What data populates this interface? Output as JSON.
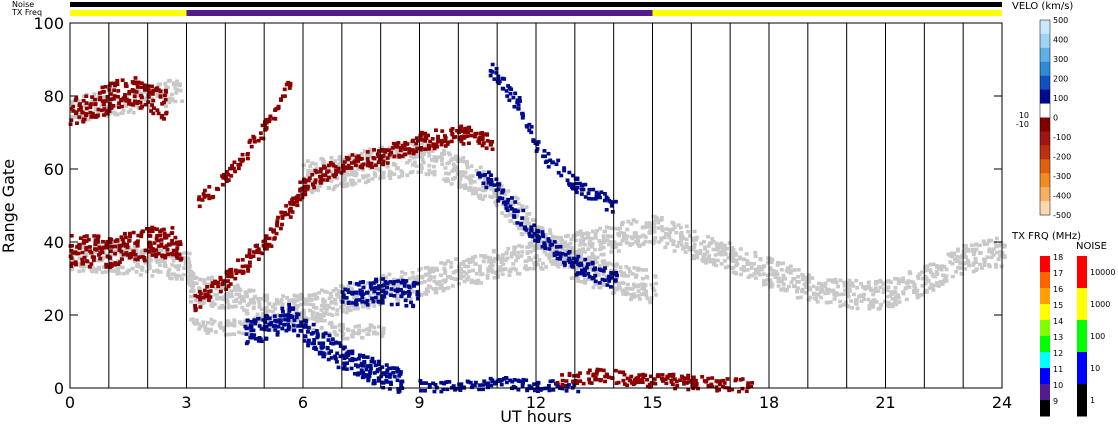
{
  "chart_data": {
    "type": "heatmap",
    "title": "",
    "xlabel": "UT hours",
    "ylabel": "Range Gate",
    "xlim": [
      0,
      24
    ],
    "ylim": [
      0,
      100
    ],
    "x_ticks": [
      "0",
      "3",
      "6",
      "9",
      "12",
      "15",
      "18",
      "21",
      "24"
    ],
    "y_ticks": [
      "0",
      "20",
      "40",
      "60",
      "80",
      "100"
    ],
    "status_bars": {
      "noise_label": "Noise",
      "txfreq_label": "TX Freq",
      "txfreq_segments": [
        {
          "from": 0,
          "to": 3,
          "color": "#ffff00"
        },
        {
          "from": 3,
          "to": 15,
          "color": "#551a8b"
        },
        {
          "from": 15,
          "to": 24,
          "color": "#ffff00"
        }
      ]
    },
    "velocity_colorbar": {
      "title": "VELO (km/s)",
      "ticks": [
        "500",
        "400",
        "300",
        "200",
        "100",
        "0",
        "-100",
        "-200",
        "-300",
        "-400",
        "-500"
      ],
      "zero_labels": [
        "10",
        "-10"
      ],
      "colors": [
        "#c8e8ff",
        "#9fd2f5",
        "#5fb0e8",
        "#2f8bd8",
        "#1050c0",
        "#000a8c",
        "#ffffff",
        "#800000",
        "#a01414",
        "#c03010",
        "#e06010",
        "#f08c20",
        "#f8b060",
        "#fcd8b0"
      ]
    },
    "txfreq_colorbar": {
      "title": "TX FRQ (MHz)",
      "ticks": [
        "18",
        "17",
        "16",
        "15",
        "14",
        "13",
        "12",
        "11",
        "10",
        "9"
      ],
      "colors": [
        "#ff0000",
        "#ff6000",
        "#ffa000",
        "#ffff00",
        "#80ff00",
        "#00ff00",
        "#00ffff",
        "#0000ff",
        "#551a8b",
        "#000000"
      ]
    },
    "noise_colorbar": {
      "title": "NOISE",
      "ticks": [
        "10000",
        "1000",
        "100",
        "10",
        "1"
      ],
      "colors": [
        "#ff0000",
        "#ffff00",
        "#00ff00",
        "#0000ff",
        "#000000"
      ]
    },
    "hour_lines": [
      0,
      1,
      2,
      3,
      4,
      5,
      6,
      7,
      8,
      9,
      10,
      11,
      12,
      13,
      14,
      15,
      16,
      17,
      18,
      19,
      20,
      21,
      22,
      23,
      24
    ],
    "scatter_regions": [
      {
        "name": "ground-scatter",
        "color": "#c8c8c8",
        "points": [
          [
            0,
            36
          ],
          [
            1,
            36
          ],
          [
            2,
            35
          ],
          [
            3,
            34
          ],
          [
            3.1,
            28
          ],
          [
            4,
            26
          ],
          [
            5,
            22
          ],
          [
            5.8,
            22
          ],
          [
            15,
            44
          ],
          [
            16,
            40
          ],
          [
            17,
            36
          ],
          [
            18,
            32
          ],
          [
            19,
            28
          ],
          [
            20,
            26
          ],
          [
            21,
            26
          ],
          [
            22,
            30
          ],
          [
            23,
            36
          ],
          [
            24,
            38
          ]
        ],
        "width": 8
      },
      {
        "name": "ground-scatter-upper",
        "color": "#c8c8c8",
        "points": [
          [
            0,
            77
          ],
          [
            1,
            78
          ],
          [
            2,
            80
          ],
          [
            2.8,
            82
          ]
        ],
        "width": 7
      },
      {
        "name": "ground-scatter-mid",
        "color": "#c8c8c8",
        "points": [
          [
            6,
            58
          ],
          [
            7,
            60
          ],
          [
            8,
            62
          ],
          [
            9,
            64
          ],
          [
            10,
            60
          ],
          [
            11,
            54
          ],
          [
            12,
            42
          ],
          [
            13,
            34
          ],
          [
            14,
            30
          ],
          [
            15,
            28
          ]
        ],
        "width": 9
      },
      {
        "name": "ground-scatter-low",
        "color": "#c8c8c8",
        "points": [
          [
            3.1,
            18
          ],
          [
            4,
            17
          ],
          [
            5,
            18
          ],
          [
            6,
            18
          ],
          [
            7,
            16
          ],
          [
            8,
            16
          ]
        ],
        "width": 4
      },
      {
        "name": "negative-velocity",
        "color": "#8b0000",
        "points": [
          [
            0,
            38
          ],
          [
            1,
            38
          ],
          [
            2,
            40
          ],
          [
            2.8,
            40
          ]
        ],
        "width": 9
      },
      {
        "name": "negative-velocity-upper",
        "color": "#8b0000",
        "points": [
          [
            0,
            76
          ],
          [
            1,
            80
          ],
          [
            1.6,
            82
          ],
          [
            2.4,
            78
          ]
        ],
        "width": 8
      },
      {
        "name": "negative-velocity-arc",
        "color": "#8b0000",
        "points": [
          [
            3.2,
            24
          ],
          [
            4,
            30
          ],
          [
            5,
            40
          ],
          [
            6,
            56
          ],
          [
            7,
            62
          ],
          [
            8,
            64
          ],
          [
            9,
            68
          ],
          [
            10,
            70
          ],
          [
            10.8,
            68
          ]
        ],
        "width": 5
      },
      {
        "name": "negative-velocity-arc2",
        "color": "#8b0000",
        "points": [
          [
            3.3,
            52
          ],
          [
            4,
            58
          ],
          [
            5,
            72
          ],
          [
            5.6,
            84
          ]
        ],
        "width": 4
      },
      {
        "name": "positive-velocity-streak",
        "color": "#000a8c",
        "points": [
          [
            10.8,
            88
          ],
          [
            11.5,
            78
          ],
          [
            12,
            66
          ],
          [
            13,
            56
          ],
          [
            14,
            50
          ]
        ],
        "width": 4
      },
      {
        "name": "positive-velocity-band",
        "color": "#000a8c",
        "points": [
          [
            10.5,
            60
          ],
          [
            11,
            54
          ],
          [
            12,
            42
          ],
          [
            13,
            34
          ],
          [
            14,
            30
          ]
        ],
        "width": 5
      },
      {
        "name": "positive-velocity-blob",
        "color": "#000a8c",
        "points": [
          [
            7,
            26
          ],
          [
            8,
            27
          ],
          [
            8.9,
            26
          ]
        ],
        "width": 7
      },
      {
        "name": "positive-velocity-low",
        "color": "#000a8c",
        "points": [
          [
            4.5,
            16
          ],
          [
            5,
            17
          ],
          [
            5.6,
            20
          ],
          [
            6.5,
            12
          ],
          [
            7.5,
            6
          ],
          [
            8.5,
            2
          ]
        ],
        "width": 7
      },
      {
        "name": "near-zero-range",
        "color": "#000a8c",
        "points": [
          [
            9,
            1
          ],
          [
            10,
            1
          ],
          [
            11,
            2
          ],
          [
            12,
            1
          ],
          [
            13,
            1
          ]
        ],
        "width": 3
      },
      {
        "name": "negative-near-zero",
        "color": "#8b0000",
        "points": [
          [
            12.5,
            2
          ],
          [
            13.5,
            4
          ],
          [
            14.5,
            3
          ],
          [
            16,
            2
          ],
          [
            17.5,
            1
          ]
        ],
        "width": 4
      }
    ]
  }
}
